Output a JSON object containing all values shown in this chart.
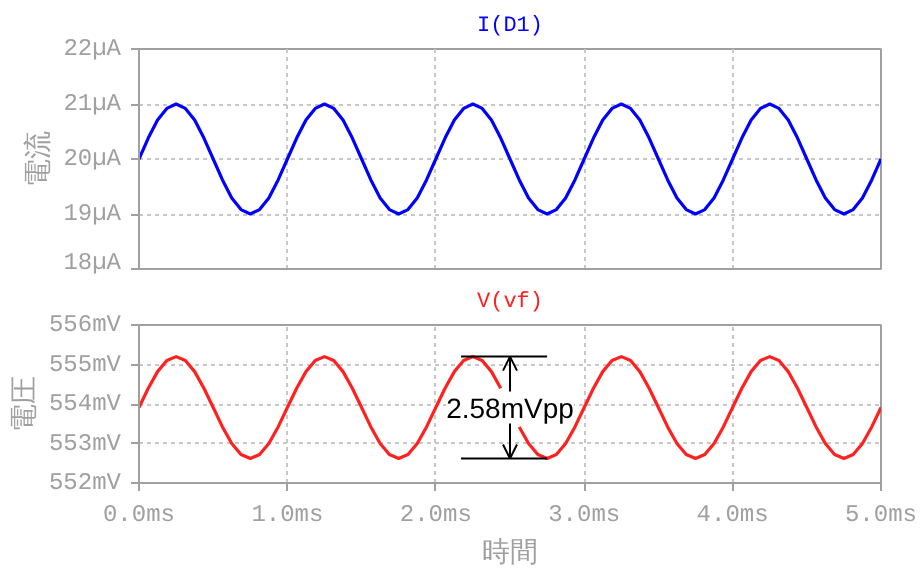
{
  "chart_data": [
    {
      "type": "line",
      "title": "I(D1)",
      "ylabel": "電流",
      "x": [
        0,
        0.0625,
        0.125,
        0.1875,
        0.25,
        0.3125,
        0.375,
        0.4375,
        0.5,
        0.5625,
        0.625,
        0.6875,
        0.75,
        0.8125,
        0.875,
        0.9375,
        1,
        1.0625,
        1.125,
        1.1875,
        1.25,
        1.3125,
        1.375,
        1.4375,
        1.5,
        1.5625,
        1.625,
        1.6875,
        1.75,
        1.8125,
        1.875,
        1.9375,
        2,
        2.0625,
        2.125,
        2.1875,
        2.25,
        2.3125,
        2.375,
        2.4375,
        2.5,
        2.5625,
        2.625,
        2.6875,
        2.75,
        2.8125,
        2.875,
        2.9375,
        3,
        3.0625,
        3.125,
        3.1875,
        3.25,
        3.3125,
        3.375,
        3.4375,
        3.5,
        3.5625,
        3.625,
        3.6875,
        3.75,
        3.8125,
        3.875,
        3.9375,
        4,
        4.0625,
        4.125,
        4.1875,
        4.25,
        4.3125,
        4.375,
        4.4375,
        4.5,
        4.5625,
        4.625,
        4.6875,
        4.75,
        4.8125,
        4.875,
        4.9375,
        5
      ],
      "series": [
        {
          "color": "#0000ff",
          "values": [
            20,
            20.38,
            20.71,
            20.92,
            21,
            20.92,
            20.71,
            20.38,
            20,
            19.62,
            19.29,
            19.08,
            19,
            19.08,
            19.29,
            19.62,
            20,
            20.38,
            20.71,
            20.92,
            21,
            20.92,
            20.71,
            20.38,
            20,
            19.62,
            19.29,
            19.08,
            19,
            19.08,
            19.29,
            19.62,
            20,
            20.38,
            20.71,
            20.92,
            21,
            20.92,
            20.71,
            20.38,
            20,
            19.62,
            19.29,
            19.08,
            19,
            19.08,
            19.29,
            19.62,
            20,
            20.38,
            20.71,
            20.92,
            21,
            20.92,
            20.71,
            20.38,
            20,
            19.62,
            19.29,
            19.08,
            19,
            19.08,
            19.29,
            19.62,
            20,
            20.38,
            20.71,
            20.92,
            21,
            20.92,
            20.71,
            20.38,
            20,
            19.62,
            19.29,
            19.08,
            19,
            19.08,
            19.29,
            19.62,
            20
          ]
        }
      ],
      "xlim": [
        0,
        5
      ],
      "xticks": [
        {
          "value": 0,
          "label": null
        },
        {
          "value": 1,
          "label": null
        },
        {
          "value": 2,
          "label": null
        },
        {
          "value": 3,
          "label": null
        },
        {
          "value": 4,
          "label": null
        },
        {
          "value": 5,
          "label": null
        }
      ],
      "ylim": [
        18,
        22
      ],
      "yticks": [
        {
          "value": 18,
          "label": "18µA"
        },
        {
          "value": 19,
          "label": "19µA"
        },
        {
          "value": 20,
          "label": "20µA"
        },
        {
          "value": 21,
          "label": "21µA"
        },
        {
          "value": 22,
          "label": "22µA"
        }
      ],
      "tick_labels": "y",
      "grid": true,
      "line_style": "solid",
      "marker": "none"
    },
    {
      "type": "line",
      "title": "V(vf)",
      "ylabel": "電圧",
      "xlabel": "時間",
      "x": [
        0,
        0.0625,
        0.125,
        0.1875,
        0.25,
        0.3125,
        0.375,
        0.4375,
        0.5,
        0.5625,
        0.625,
        0.6875,
        0.75,
        0.8125,
        0.875,
        0.9375,
        1,
        1.0625,
        1.125,
        1.1875,
        1.25,
        1.3125,
        1.375,
        1.4375,
        1.5,
        1.5625,
        1.625,
        1.6875,
        1.75,
        1.8125,
        1.875,
        1.9375,
        2,
        2.0625,
        2.125,
        2.1875,
        2.25,
        2.3125,
        2.375,
        2.4375,
        2.5,
        2.5625,
        2.625,
        2.6875,
        2.75,
        2.8125,
        2.875,
        2.9375,
        3,
        3.0625,
        3.125,
        3.1875,
        3.25,
        3.3125,
        3.375,
        3.4375,
        3.5,
        3.5625,
        3.625,
        3.6875,
        3.75,
        3.8125,
        3.875,
        3.9375,
        4,
        4.0625,
        4.125,
        4.1875,
        4.25,
        4.3125,
        4.375,
        4.4375,
        4.5,
        4.5625,
        4.625,
        4.6875,
        4.75,
        4.8125,
        4.875,
        4.9375,
        5
      ],
      "series": [
        {
          "color": "#ff2020",
          "values": [
            553.91,
            554.4,
            554.82,
            555.1,
            555.2,
            555.1,
            554.82,
            554.4,
            553.91,
            553.42,
            553,
            552.72,
            552.62,
            552.72,
            553,
            553.42,
            553.91,
            554.4,
            554.82,
            555.1,
            555.2,
            555.1,
            554.82,
            554.4,
            553.91,
            553.42,
            553,
            552.72,
            552.62,
            552.72,
            553,
            553.42,
            553.91,
            554.4,
            554.82,
            555.1,
            555.2,
            555.1,
            554.82,
            554.4,
            null,
            553.42,
            553,
            552.72,
            552.62,
            552.72,
            553,
            553.42,
            553.91,
            554.4,
            554.82,
            555.1,
            555.2,
            555.1,
            554.82,
            554.4,
            553.91,
            553.42,
            553,
            552.72,
            552.62,
            552.72,
            553,
            553.42,
            553.91,
            554.4,
            554.82,
            555.1,
            555.2,
            555.1,
            554.82,
            554.4,
            553.91,
            553.42,
            553,
            552.72,
            552.62,
            552.72,
            553,
            553.42,
            553.91
          ]
        }
      ],
      "xlim": [
        0,
        5
      ],
      "xticks": [
        {
          "value": 0,
          "label": "0.0ms"
        },
        {
          "value": 1,
          "label": "1.0ms"
        },
        {
          "value": 2,
          "label": "2.0ms"
        },
        {
          "value": 3,
          "label": "3.0ms"
        },
        {
          "value": 4,
          "label": "4.0ms"
        },
        {
          "value": 5,
          "label": "5.0ms"
        }
      ],
      "ylim": [
        552,
        556
      ],
      "yticks": [
        {
          "value": 552,
          "label": "552mV"
        },
        {
          "value": 553,
          "label": "553mV"
        },
        {
          "value": 554,
          "label": "554mV"
        },
        {
          "value": 555,
          "label": "555mV"
        },
        {
          "value": 556,
          "label": "556mV"
        }
      ],
      "annotations": [
        "2.58mVpp"
      ],
      "grid": true,
      "line_style": "solid",
      "marker": "none"
    }
  ]
}
